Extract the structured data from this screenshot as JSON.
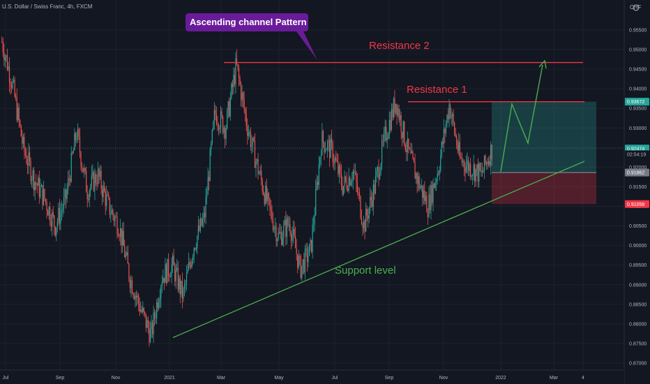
{
  "header": {
    "symbol_title": "U.S. Dollar / Swiss Franc, 4h, FXCM",
    "currency": "CHF"
  },
  "chart_data": {
    "type": "candlestick",
    "title": "U.S. Dollar / Swiss Franc, 4h, FXCM",
    "currency": "CHF",
    "ylim": [
      0.865,
      0.962
    ],
    "y_ticks": [
      0.87,
      0.875,
      0.88,
      0.885,
      0.89,
      0.895,
      0.9,
      0.905,
      0.91,
      0.915,
      0.92,
      0.925,
      0.93,
      0.935,
      0.94,
      0.945,
      0.95,
      0.955
    ],
    "y_tick_labels": [
      "0.87000",
      "0.87500",
      "0.88000",
      "0.88500",
      "0.89000",
      "0.89500",
      "0.90000",
      "0.90500",
      "0.91000",
      "0.91500",
      "0.92000",
      "0.92500",
      "0.93000",
      "0.93500",
      "0.94000",
      "0.94500",
      "0.95000",
      "0.95500"
    ],
    "x_ticks": [
      "Jul",
      "Sep",
      "Nov",
      "2021",
      "Mar",
      "May",
      "Jul",
      "Sep",
      "Nov",
      "2022",
      "Mar",
      "4"
    ],
    "series_path": [
      [
        0,
        0.952
      ],
      [
        1,
        0.941
      ],
      [
        2,
        0.925
      ],
      [
        3,
        0.917
      ],
      [
        4,
        0.912
      ],
      [
        5,
        0.905
      ],
      [
        6,
        0.912
      ],
      [
        7,
        0.929
      ],
      [
        8,
        0.914
      ],
      [
        9,
        0.918
      ],
      [
        10,
        0.91
      ],
      [
        11,
        0.905
      ],
      [
        12,
        0.892
      ],
      [
        13,
        0.884
      ],
      [
        14,
        0.877
      ],
      [
        15,
        0.892
      ],
      [
        16,
        0.895
      ],
      [
        17,
        0.887
      ],
      [
        18,
        0.9
      ],
      [
        19,
        0.907
      ],
      [
        20,
        0.934
      ],
      [
        21,
        0.93
      ],
      [
        22,
        0.946
      ],
      [
        23,
        0.931
      ],
      [
        24,
        0.92
      ],
      [
        25,
        0.91
      ],
      [
        26,
        0.902
      ],
      [
        27,
        0.906
      ],
      [
        28,
        0.894
      ],
      [
        29,
        0.899
      ],
      [
        30,
        0.927
      ],
      [
        31,
        0.924
      ],
      [
        32,
        0.915
      ],
      [
        33,
        0.919
      ],
      [
        34,
        0.905
      ],
      [
        35,
        0.915
      ],
      [
        36,
        0.928
      ],
      [
        37,
        0.937
      ],
      [
        38,
        0.925
      ],
      [
        39,
        0.917
      ],
      [
        40,
        0.91
      ],
      [
        41,
        0.92
      ],
      [
        42,
        0.936
      ],
      [
        43,
        0.922
      ],
      [
        44,
        0.92
      ],
      [
        45,
        0.918
      ],
      [
        46,
        0.9247
      ]
    ],
    "up_color": "#26a69a",
    "down_color": "#ef5350",
    "resistance_1": {
      "label": "Resistance 1",
      "price": 0.9367
    },
    "resistance_2": {
      "label": "Resistance 2",
      "price": 0.9467
    },
    "support": {
      "label": "Support level",
      "from": 0.8765,
      "to": 0.9215
    },
    "callout": {
      "text": "Ascending channel Pattern",
      "color": "#6a1b9a"
    },
    "position": {
      "entry": 0.91862,
      "target": 0.93672,
      "stop": 0.91058
    },
    "price_tags": [
      {
        "value": "0.93672",
        "bg": "#26a69a",
        "fg": "#ffffff",
        "price": 0.93672
      },
      {
        "value": "0.92474",
        "bg": "#26a69a",
        "fg": "#ffffff",
        "price": 0.92474
      },
      {
        "value": "02:54:19",
        "bg": "#131722",
        "fg": "#b2b5be",
        "price": 0.9233
      },
      {
        "value": "0.91862",
        "bg": "#787b86",
        "fg": "#ffffff",
        "price": 0.91862
      },
      {
        "value": "0.91058",
        "bg": "#f23645",
        "fg": "#ffffff",
        "price": 0.91058
      }
    ]
  }
}
